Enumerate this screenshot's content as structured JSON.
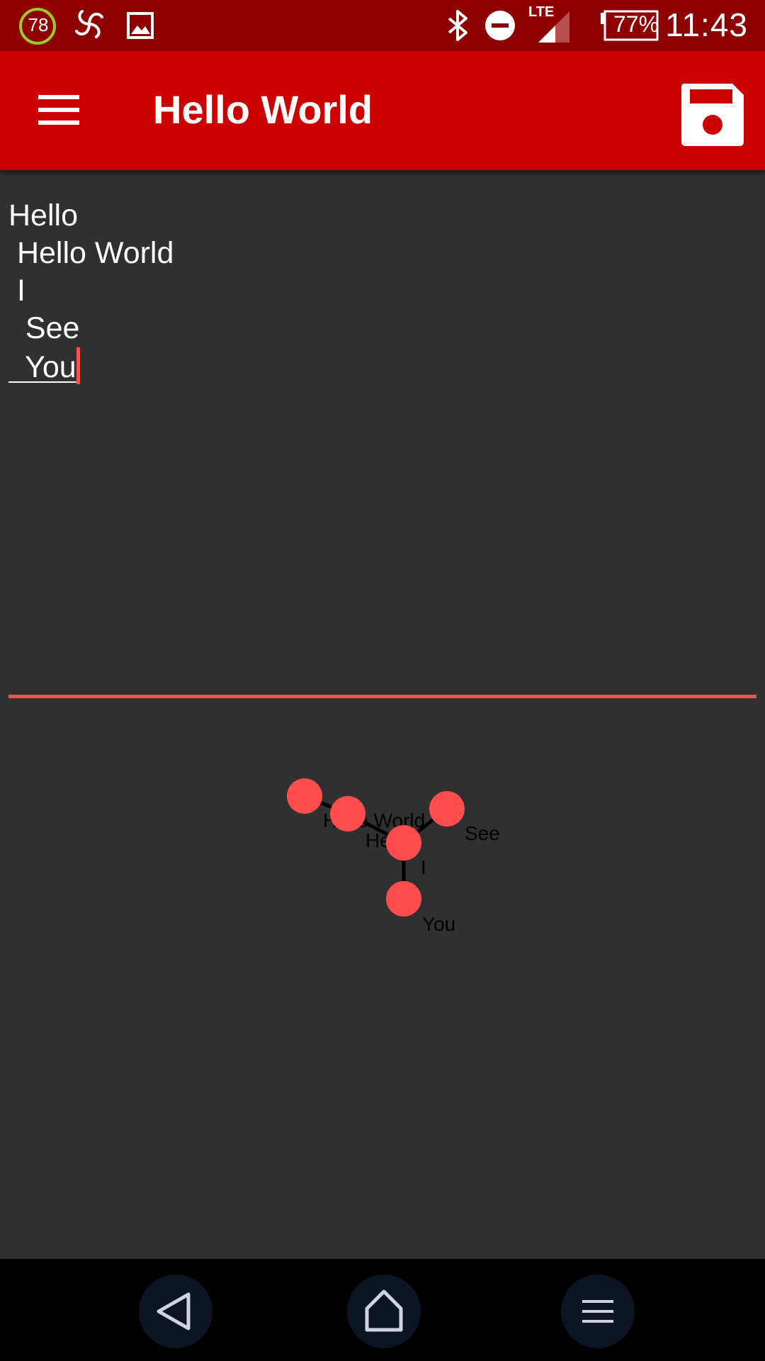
{
  "status_bar": {
    "notification_count": "78",
    "network": "LTE",
    "battery": "77%",
    "time": "11:43",
    "icons": [
      "circle-count-icon",
      "pinwheel-icon",
      "image-icon",
      "bluetooth-icon",
      "do-not-disturb-icon",
      "signal-icon",
      "battery-icon"
    ]
  },
  "app_bar": {
    "title": "Hello World",
    "icons": [
      "hamburger-menu-icon",
      "save-icon"
    ],
    "color": "#cc0000"
  },
  "editor": {
    "lines": [
      "Hello",
      " Hello World",
      " I",
      "  See",
      "  You"
    ],
    "cursor_color": "#ff5252"
  },
  "graph": {
    "node_color": "#ff4c4c",
    "nodes": [
      {
        "label": ""
      },
      {
        "label": "Hello World"
      },
      {
        "label": "He"
      },
      {
        "label": "See"
      },
      {
        "label": "I"
      },
      {
        "label": "You"
      }
    ]
  },
  "nav_bar": {
    "icons": [
      "back-icon",
      "home-icon",
      "recents-icon"
    ]
  }
}
